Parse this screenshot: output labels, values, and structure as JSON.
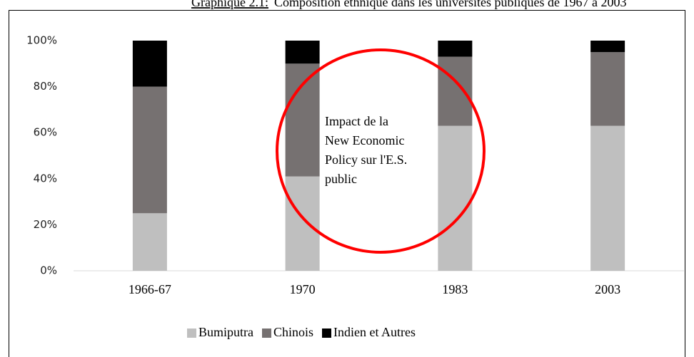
{
  "chart_data": {
    "type": "stacked_bar",
    "title_label": "Graphique 2.1:",
    "title": "Composition ethnique dans les universités publiques de 1967 à 2003",
    "categories": [
      "1966-67",
      "1970",
      "1983",
      "2003"
    ],
    "series": [
      {
        "name": "Bumiputra",
        "color": "#bfbfbf",
        "values": [
          25,
          41,
          63,
          63
        ]
      },
      {
        "name": "Chinois",
        "color": "#767171",
        "values": [
          55,
          49,
          30,
          32
        ]
      },
      {
        "name": "Indien et Autres",
        "color": "#000000",
        "values": [
          20,
          10,
          7,
          5
        ]
      }
    ],
    "ylim": [
      0,
      100
    ],
    "yticks": [
      {
        "value": 0,
        "label": "0%"
      },
      {
        "value": 20,
        "label": "20%"
      },
      {
        "value": 40,
        "label": "40%"
      },
      {
        "value": 60,
        "label": "60%"
      },
      {
        "value": 80,
        "label": "80%"
      },
      {
        "value": 100,
        "label": "100%"
      }
    ],
    "annotation": [
      "Impact de la",
      "New Economic",
      "Policy sur l'E.S.",
      "public"
    ],
    "annotation_color": "#ff0000",
    "legend": "bottom"
  }
}
